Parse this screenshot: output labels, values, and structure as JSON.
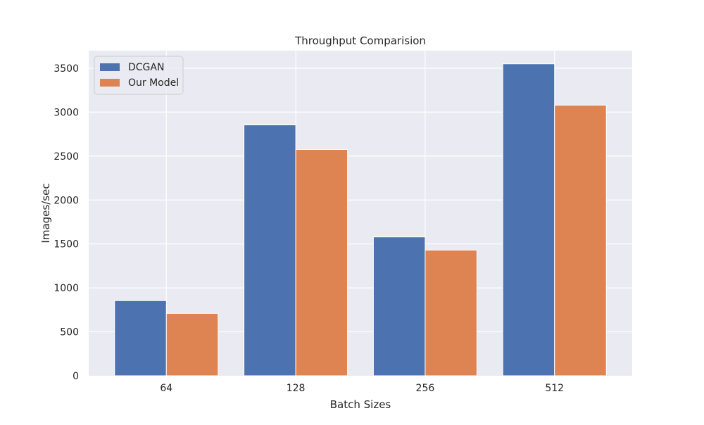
{
  "chart_data": {
    "type": "bar",
    "title": "Throughput Comparision",
    "xlabel": "Batch Sizes",
    "ylabel": "Images/sec",
    "categories": [
      "64",
      "128",
      "256",
      "512"
    ],
    "series": [
      {
        "name": "DCGAN",
        "values": [
          855,
          2855,
          1580,
          3550
        ],
        "color": "#4c72b0"
      },
      {
        "name": "Our Model",
        "values": [
          710,
          2575,
          1430,
          3080
        ],
        "color": "#dd8452"
      }
    ],
    "ylim": [
      0,
      3700
    ],
    "yticks": [
      0,
      500,
      1000,
      1500,
      2000,
      2500,
      3000,
      3500
    ],
    "grid": true,
    "legend_position": "top-left",
    "background_color": "#eaeaf2",
    "grid_color": "#ffffff"
  }
}
